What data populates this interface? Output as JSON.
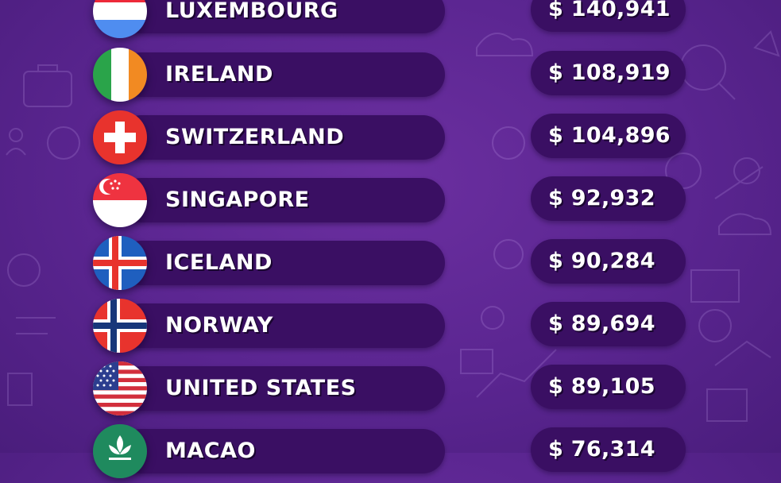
{
  "rankings": [
    {
      "country": "LUXEMBOURG",
      "value": "$ 140,941",
      "flag": "luxembourg-flag"
    },
    {
      "country": "IRELAND",
      "value": "$ 108,919",
      "flag": "ireland-flag"
    },
    {
      "country": "SWITZERLAND",
      "value": "$ 104,896",
      "flag": "switzerland-flag"
    },
    {
      "country": "SINGAPORE",
      "value": "$ 92,932",
      "flag": "singapore-flag"
    },
    {
      "country": "ICELAND",
      "value": "$ 90,284",
      "flag": "iceland-flag"
    },
    {
      "country": "NORWAY",
      "value": "$ 89,694",
      "flag": "norway-flag"
    },
    {
      "country": "UNITED STATES",
      "value": "$ 89,105",
      "flag": "usa-flag"
    },
    {
      "country": "MACAO",
      "value": "$ 76,314",
      "flag": "macao-flag"
    }
  ],
  "colors": {
    "background": "#5a2590",
    "pill": "#3a0f63",
    "text": "#ffffff"
  }
}
